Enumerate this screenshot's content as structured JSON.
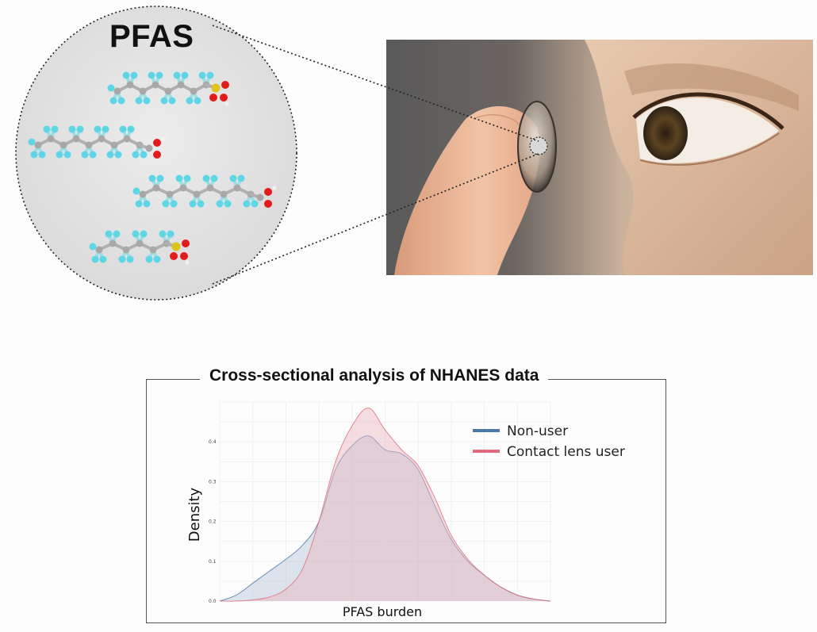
{
  "illustration": {
    "title": "PFAS",
    "molecule_icons": [
      "perfluorinated-sulfonic-acid",
      "perfluorinated-carboxylic-acid",
      "perfluorinated-carboxylic-acid",
      "perfluorinated-sulfonic-acid"
    ],
    "photo_subject": "fingertip-holding-contact-lens-near-eye"
  },
  "colors": {
    "fluorine": "#5fd6e6",
    "carbon": "#a8a8a8",
    "oxygen": "#e21b1b",
    "sulfur": "#e0c21c",
    "non_user": "#4a78a8",
    "contact_lens_user": "#e06b7c"
  },
  "chart_data": {
    "type": "area",
    "title": "Cross-sectional analysis of NHANES data",
    "xlabel": "PFAS burden",
    "ylabel": "Density",
    "x_tick_labels": [],
    "y_ticks": [
      0.0,
      0.1,
      0.2,
      0.3,
      0.4
    ],
    "y_tick_labels": [
      "0.0",
      "0.1",
      "0.2",
      "0.3",
      "0.4"
    ],
    "ylim": [
      0,
      0.5
    ],
    "xlim": [
      0,
      10
    ],
    "grid": true,
    "legend_position": "top-right",
    "x": [
      0,
      0.5,
      1.0,
      1.5,
      2.0,
      2.5,
      3.0,
      3.5,
      4.0,
      4.5,
      5.0,
      5.5,
      6.0,
      6.5,
      7.0,
      7.5,
      8.0,
      8.5,
      9.0,
      9.5,
      10.0
    ],
    "series": [
      {
        "name": "Non-user",
        "values": [
          0.0,
          0.015,
          0.045,
          0.075,
          0.105,
          0.14,
          0.2,
          0.33,
          0.39,
          0.415,
          0.38,
          0.37,
          0.33,
          0.24,
          0.155,
          0.1,
          0.065,
          0.035,
          0.015,
          0.005,
          0.0
        ]
      },
      {
        "name": "Contact lens user",
        "values": [
          0.0,
          0.0,
          0.003,
          0.01,
          0.03,
          0.08,
          0.2,
          0.35,
          0.44,
          0.485,
          0.43,
          0.38,
          0.34,
          0.26,
          0.165,
          0.105,
          0.065,
          0.035,
          0.015,
          0.005,
          0.0
        ]
      }
    ]
  }
}
